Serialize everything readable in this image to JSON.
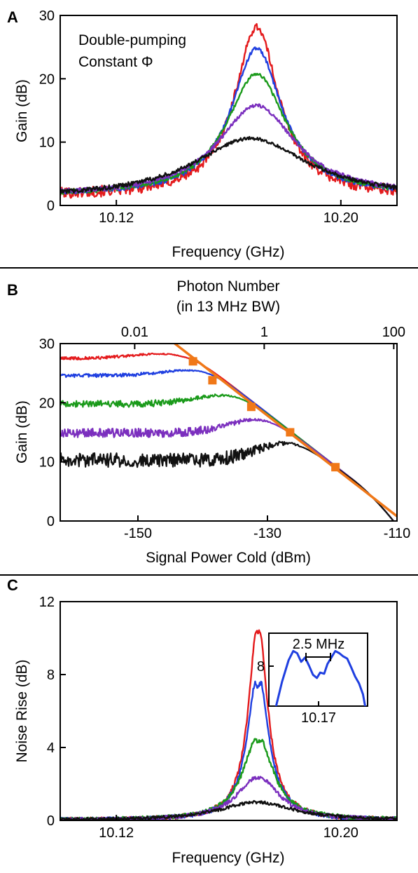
{
  "chart_data": [
    {
      "panel": "A",
      "type": "line",
      "xlabel": "Frequency (GHz)",
      "ylabel": "Gain (dB)",
      "xlim": [
        10.1,
        10.22
      ],
      "ylim": [
        0,
        30
      ],
      "xticks": [
        "10.12",
        "10.20"
      ],
      "xtick_values": [
        10.12,
        10.2
      ],
      "yticks": [
        "0",
        "10",
        "20",
        "30"
      ],
      "annotations": [
        "Double-pumping",
        "Constant Φ"
      ],
      "grid": false,
      "series": [
        {
          "color": "#e41a1c",
          "center": 10.17,
          "peak": 28.2,
          "width": 0.0095,
          "edge": 1.5,
          "noise": 0.55
        },
        {
          "color": "#1f3fe0",
          "center": 10.17,
          "peak": 24.8,
          "width": 0.011,
          "edge": 1.6,
          "noise": 0.25
        },
        {
          "color": "#1a9a1a",
          "center": 10.17,
          "peak": 20.8,
          "width": 0.013,
          "edge": 1.5,
          "noise": 0.25
        },
        {
          "color": "#7b2fbe",
          "center": 10.17,
          "peak": 15.8,
          "width": 0.017,
          "edge": 1.4,
          "noise": 0.25
        },
        {
          "color": "#111111",
          "center": 10.168,
          "peak": 10.6,
          "width": 0.025,
          "edge": 1.0,
          "noise": 0.25
        }
      ]
    },
    {
      "panel": "B",
      "type": "line",
      "xlabel": "Signal Power Cold (dBm)",
      "ylabel": "Gain (dB)",
      "top_xlabel": [
        "Photon Number",
        "(in 13 MHz BW)"
      ],
      "xlim": [
        -162,
        -110
      ],
      "ylim": [
        0,
        30
      ],
      "xticks": [
        "-150",
        "-130",
        "-110"
      ],
      "xtick_values": [
        -150,
        -130,
        -110
      ],
      "top_xticks": [
        "0.01",
        "1",
        "100"
      ],
      "top_xtick_values": [
        -150.5,
        -130.5,
        -110.5
      ],
      "yticks": [
        "0",
        "10",
        "20",
        "30"
      ],
      "grid": false,
      "series": [
        {
          "color": "#e41a1c",
          "g0": 27.5,
          "bump": 0.8,
          "bump_at": -146,
          "knee": -141,
          "noise": 0.25
        },
        {
          "color": "#1f3fe0",
          "g0": 24.6,
          "bump": 1.0,
          "bump_at": -141,
          "knee": -137.5,
          "noise": 0.3
        },
        {
          "color": "#1a9a1a",
          "g0": 19.8,
          "bump": 1.6,
          "bump_at": -136,
          "knee": -133,
          "noise": 0.55
        },
        {
          "color": "#7b2fbe",
          "g0": 14.9,
          "bump": 2.4,
          "bump_at": -131,
          "knee": -128.5,
          "noise": 0.75
        },
        {
          "color": "#111111",
          "g0": 10.3,
          "bump": 3.0,
          "bump_at": -126.5,
          "knee": -124,
          "noise": 1.2
        }
      ],
      "fit_line": {
        "color": "#f07818",
        "x": [
          -145,
          -110
        ],
        "y": [
          30.6,
          0.8
        ]
      },
      "markers": {
        "color": "#f07818",
        "x": [
          -141.5,
          -138.5,
          -132.5,
          -126.5,
          -119.5
        ],
        "y": [
          27,
          23.8,
          19.3,
          15,
          9.1
        ]
      }
    },
    {
      "panel": "C",
      "type": "line",
      "xlabel": "Frequency (GHz)",
      "ylabel": "Noise Rise (dB)",
      "xlim": [
        10.1,
        10.22
      ],
      "ylim": [
        0,
        12
      ],
      "xticks": [
        "10.12",
        "10.20"
      ],
      "xtick_values": [
        10.12,
        10.2
      ],
      "yticks": [
        "0",
        "4",
        "8",
        "12"
      ],
      "grid": false,
      "series": [
        {
          "color": "#e41a1c",
          "center": 10.1705,
          "peak": 11.0,
          "width": 0.004,
          "dip": 0.7,
          "noise": 0.12
        },
        {
          "color": "#1f3fe0",
          "center": 10.1705,
          "peak": 8.2,
          "width": 0.0045,
          "dip": 0.9,
          "noise": 0.12
        },
        {
          "color": "#1a9a1a",
          "center": 10.1705,
          "peak": 4.6,
          "width": 0.0065,
          "dip": 0.3,
          "noise": 0.12
        },
        {
          "color": "#7b2fbe",
          "center": 10.1705,
          "peak": 2.4,
          "width": 0.009,
          "dip": 0.1,
          "noise": 0.1
        },
        {
          "color": "#111111",
          "center": 10.17,
          "peak": 1.0,
          "width": 0.016,
          "dip": 0.0,
          "noise": 0.08
        }
      ],
      "inset": {
        "xticks": [
          "10.17"
        ],
        "yticks": [
          "8"
        ],
        "annotation": "2.5 MHz",
        "color": "#1f3fe0"
      }
    }
  ],
  "labels": {
    "panel_a": "A",
    "panel_b": "B",
    "panel_c": "C"
  }
}
